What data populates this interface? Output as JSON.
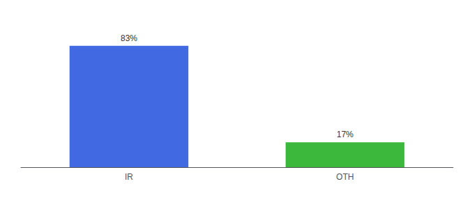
{
  "chart_data": {
    "type": "bar",
    "categories": [
      "IR",
      "OTH"
    ],
    "values": [
      83,
      17
    ],
    "value_labels": [
      "83%",
      "17%"
    ],
    "data_labels": true,
    "colors": [
      "#4169e1",
      "#3cb83c"
    ],
    "ylim": [
      0,
      100
    ],
    "grid": false,
    "tick_labels": "x"
  }
}
